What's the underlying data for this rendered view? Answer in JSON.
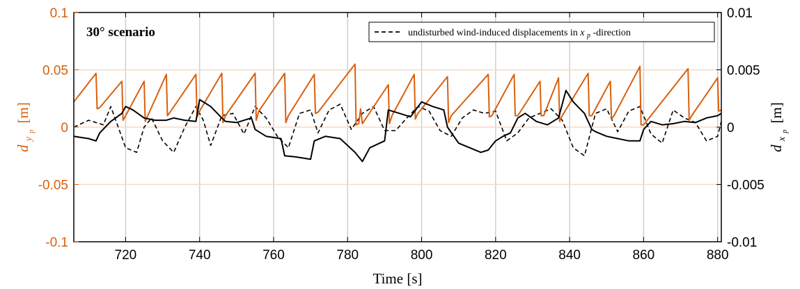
{
  "chart_data": {
    "type": "line",
    "annotation": "30° scenario",
    "xlabel": "Time [s]",
    "xlim": [
      706,
      881
    ],
    "x_ticks": [
      720,
      740,
      760,
      780,
      800,
      820,
      840,
      860,
      880
    ],
    "x_tick_labels": [
      "720",
      "740",
      "760",
      "780",
      "800",
      "820",
      "840",
      "860",
      "880"
    ],
    "y_left": {
      "label_base": "d",
      "label_sub": "y",
      "label_subsub": "p",
      "label_unit": "[m]",
      "lim": [
        -0.1,
        0.1
      ],
      "ticks": [
        -0.1,
        -0.05,
        0,
        0.05,
        0.1
      ],
      "tick_labels": [
        "-0.1",
        "-0.05",
        "0",
        "0.05",
        "0.1"
      ],
      "color": "#D95F0E"
    },
    "y_right": {
      "label_base": "d",
      "label_sub": "x",
      "label_subsub": "p",
      "label_unit": "[m]",
      "lim": [
        -0.01,
        0.01
      ],
      "ticks": [
        -0.01,
        -0.005,
        0,
        0.005,
        0.01
      ],
      "tick_labels": [
        "-0.01",
        "-0.005",
        "0",
        "0.005",
        "0.01"
      ],
      "color": "#000000"
    },
    "grid": {
      "x": true,
      "y_orange": true
    },
    "legend": {
      "placement": "top-right",
      "entry_prefix": "undisturbed wind-induced displacements in ",
      "entry_var": "x",
      "entry_sub": "p",
      "entry_suffix": "-direction"
    },
    "series": [
      {
        "axis": "left",
        "color": "#D95F0E",
        "style": "solid",
        "x": [
          706,
          712,
          712.3,
          713,
          719,
          719.3,
          720,
          725,
          725.3,
          726,
          731,
          731.3,
          732,
          739,
          739.3,
          740,
          746,
          746.3,
          747,
          755,
          755.3,
          756,
          763,
          763.3,
          764,
          771,
          771.3,
          772,
          782,
          782.3,
          783,
          783.5,
          784,
          791,
          791.3,
          792,
          798,
          798.3,
          799,
          807,
          807.3,
          808,
          818,
          818.3,
          819,
          825,
          825.3,
          826,
          832,
          832.3,
          833,
          837,
          837.3,
          838,
          845,
          845.3,
          846,
          851,
          851.3,
          852,
          859,
          859.3,
          860,
          872,
          872.3,
          873,
          880,
          880.3,
          881
        ],
        "y": [
          0.022,
          0.047,
          0.016,
          0.017,
          0.04,
          0.006,
          0.01,
          0.04,
          0.005,
          0.01,
          0.046,
          0.01,
          0.013,
          0.046,
          0.009,
          0.014,
          0.047,
          0.004,
          0.01,
          0.047,
          0.006,
          0.014,
          0.047,
          0.004,
          0.01,
          0.046,
          0.012,
          0.013,
          0.055,
          0.002,
          0.003,
          0.016,
          0.003,
          0.037,
          0.003,
          0.01,
          0.046,
          0.007,
          0.012,
          0.044,
          0.004,
          0.01,
          0.046,
          0.009,
          0.01,
          0.046,
          0.01,
          0.01,
          0.04,
          0.01,
          0.01,
          0.043,
          0.005,
          0.01,
          0.047,
          0.01,
          0.01,
          0.04,
          0.007,
          0.01,
          0.053,
          0.002,
          0.002,
          0.051,
          0.006,
          0.01,
          0.043,
          0.014,
          0.015
        ]
      },
      {
        "axis": "right",
        "color": "#000000",
        "style": "solid",
        "x": [
          706,
          710,
          712,
          713,
          716,
          719,
          720,
          722,
          725,
          728,
          731,
          733,
          736,
          739,
          740,
          743,
          746,
          747,
          750,
          754,
          755,
          758,
          762,
          763,
          766,
          770,
          771,
          774,
          778,
          782,
          784,
          786,
          790,
          791,
          794,
          797,
          800,
          803,
          806,
          807,
          810,
          813,
          816,
          818,
          820,
          822,
          824,
          826,
          828,
          831,
          834,
          837,
          839,
          841,
          844,
          846,
          847,
          850,
          853,
          856,
          859,
          860,
          862,
          865,
          868,
          871,
          874,
          877,
          880,
          881
        ],
        "y": [
          -0.0008,
          -0.001,
          -0.0012,
          -0.0005,
          0.0005,
          0.0012,
          0.0018,
          0.0015,
          0.0008,
          0.0006,
          0.0006,
          0.0008,
          0.0006,
          0.0005,
          0.0024,
          0.0018,
          0.0008,
          0.0005,
          0.0004,
          0.0008,
          -0.0002,
          -0.0008,
          -0.001,
          -0.0025,
          -0.0026,
          -0.0028,
          -0.0012,
          -0.0008,
          -0.001,
          -0.0022,
          -0.003,
          -0.0018,
          -0.0012,
          0.0015,
          0.0012,
          0.0009,
          0.0022,
          0.0018,
          0.0015,
          0.0,
          -0.0014,
          -0.0018,
          -0.0022,
          -0.002,
          -0.0012,
          -0.0008,
          -0.0005,
          0.0008,
          0.0012,
          0.0005,
          0.0002,
          0.0008,
          0.0032,
          0.0022,
          0.0012,
          -0.0002,
          -0.0004,
          -0.0008,
          -0.001,
          -0.0012,
          -0.0012,
          -0.0002,
          0.0005,
          0.0002,
          0.0003,
          0.0005,
          0.0004,
          0.0008,
          0.001,
          0.0012
        ]
      },
      {
        "axis": "right",
        "color": "#000000",
        "style": "dashed",
        "x": [
          706,
          710,
          714,
          716,
          718,
          720,
          723,
          725,
          727,
          730,
          733,
          736,
          739,
          741,
          743,
          746,
          749,
          752,
          755,
          758,
          761,
          764,
          767,
          770,
          772,
          775,
          778,
          781,
          784,
          787,
          790,
          793,
          796,
          799,
          802,
          805,
          808,
          811,
          814,
          817,
          820,
          823,
          826,
          829,
          832,
          835,
          838,
          841,
          844,
          847,
          850,
          853,
          856,
          859,
          862,
          865,
          868,
          871,
          874,
          877,
          880,
          881
        ],
        "y": [
          0.0,
          0.0006,
          0.0002,
          0.0018,
          0.0,
          -0.0018,
          -0.0022,
          0.0,
          0.0008,
          -0.0012,
          -0.0022,
          0.0,
          0.0018,
          0.0006,
          -0.0016,
          0.001,
          0.0012,
          -0.0006,
          0.0018,
          0.0008,
          -0.0008,
          -0.0018,
          0.0012,
          0.0015,
          -0.0005,
          0.0015,
          0.002,
          -0.0002,
          0.0012,
          0.0018,
          -0.0003,
          -0.0003,
          0.0008,
          0.0018,
          0.0014,
          -0.0003,
          -0.0008,
          0.0008,
          0.0015,
          0.0012,
          0.0014,
          -0.0012,
          -0.0005,
          0.0008,
          0.0012,
          0.0016,
          0.0006,
          -0.0018,
          -0.0025,
          0.0012,
          0.0016,
          -0.0004,
          0.0014,
          0.0018,
          -0.0006,
          -0.0014,
          0.0015,
          0.0008,
          0.0004,
          -0.0012,
          -0.0008,
          0.0005
        ]
      }
    ]
  }
}
